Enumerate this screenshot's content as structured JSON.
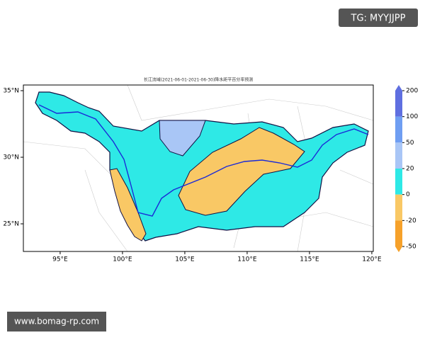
{
  "header": {
    "badge": "TG: MYYJJPP"
  },
  "map": {
    "title": "长江流域(2021-06-01-2021-06-30)降水距平百分率预测",
    "lon_ticks": [
      {
        "value": 95,
        "label": "95°E"
      },
      {
        "value": 100,
        "label": "100°E"
      },
      {
        "value": 105,
        "label": "105°E"
      },
      {
        "value": 110,
        "label": "110°E"
      },
      {
        "value": 115,
        "label": "115°E"
      },
      {
        "value": 120,
        "label": "120°E"
      }
    ],
    "lat_ticks": [
      {
        "value": 35,
        "label": "35°N"
      },
      {
        "value": 30,
        "label": "30°N"
      },
      {
        "value": 25,
        "label": "25°N"
      }
    ],
    "colorbar": {
      "ticks": [
        200,
        100,
        50,
        20,
        0,
        -20,
        -50
      ],
      "colors": [
        "#5f6fe0",
        "#6f9ef2",
        "#a9c6f6",
        "#2ee9e6",
        "#f9c865",
        "#f6a12a"
      ]
    }
  },
  "footer": {
    "watermark": "www.bomag-rp.com"
  }
}
